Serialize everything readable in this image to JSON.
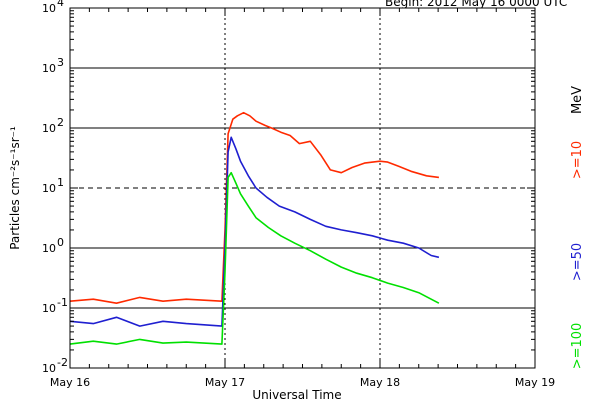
{
  "header": {
    "begin_text": "Begin: 2012 May 16 0000 UTC"
  },
  "chart_data": {
    "type": "line",
    "title": "",
    "xlabel": "Universal Time",
    "ylabel": "Particles cm⁻²s⁻¹sr⁻¹",
    "yscale": "log",
    "xlim_days": [
      0,
      3
    ],
    "ylim": [
      0.01,
      10000
    ],
    "x_tick_labels": [
      "May 16",
      "May 17",
      "May 18",
      "May 19"
    ],
    "x_ticks_days": [
      0,
      1,
      2,
      3
    ],
    "y_tick_labels": [
      {
        "base": "10",
        "exp": "-2",
        "value": 0.01
      },
      {
        "base": "10",
        "exp": "-1",
        "value": 0.1
      },
      {
        "base": "10",
        "exp": "0",
        "value": 1
      },
      {
        "base": "10",
        "exp": "1",
        "value": 10
      },
      {
        "base": "10",
        "exp": "2",
        "value": 100
      },
      {
        "base": "10",
        "exp": "3",
        "value": 1000
      },
      {
        "base": "10",
        "exp": "4",
        "value": 10000
      }
    ],
    "reference_lines": [
      {
        "value": 0.1,
        "style": "solid"
      },
      {
        "value": 1,
        "style": "solid"
      },
      {
        "value": 10,
        "style": "dashed"
      },
      {
        "value": 100,
        "style": "solid"
      },
      {
        "value": 1000,
        "style": "solid"
      }
    ],
    "legend_unit": "MeV",
    "series": [
      {
        "name": ">=10",
        "color": "#ff2a00",
        "x": [
          0.0,
          0.15,
          0.3,
          0.45,
          0.6,
          0.75,
          0.98,
          1.0,
          1.02,
          1.05,
          1.08,
          1.12,
          1.16,
          1.2,
          1.26,
          1.3,
          1.36,
          1.42,
          1.48,
          1.55,
          1.62,
          1.68,
          1.75,
          1.82,
          1.9,
          2.0,
          2.05,
          2.12,
          2.2,
          2.3,
          2.38
        ],
        "y": [
          0.13,
          0.14,
          0.12,
          0.15,
          0.13,
          0.14,
          0.13,
          2.0,
          80,
          140,
          160,
          180,
          160,
          130,
          110,
          100,
          85,
          75,
          55,
          60,
          35,
          20,
          18,
          22,
          26,
          28,
          27,
          23,
          19,
          16,
          15
        ]
      },
      {
        "name": ">=50",
        "color": "#1f1fd0",
        "x": [
          0.0,
          0.15,
          0.3,
          0.45,
          0.6,
          0.75,
          0.98,
          1.0,
          1.02,
          1.04,
          1.07,
          1.1,
          1.15,
          1.2,
          1.27,
          1.35,
          1.45,
          1.55,
          1.65,
          1.75,
          1.85,
          1.95,
          2.05,
          2.15,
          2.25,
          2.33,
          2.38
        ],
        "y": [
          0.06,
          0.055,
          0.07,
          0.05,
          0.06,
          0.055,
          0.05,
          1.0,
          40,
          70,
          45,
          28,
          16,
          10,
          7,
          5,
          4,
          3,
          2.3,
          2.0,
          1.8,
          1.6,
          1.35,
          1.2,
          1.0,
          0.75,
          0.7
        ]
      },
      {
        "name": ">=100",
        "color": "#00e000",
        "x": [
          0.0,
          0.15,
          0.3,
          0.45,
          0.6,
          0.75,
          0.98,
          1.0,
          1.02,
          1.04,
          1.07,
          1.1,
          1.15,
          1.2,
          1.28,
          1.36,
          1.45,
          1.55,
          1.65,
          1.75,
          1.85,
          1.95,
          2.05,
          2.15,
          2.25,
          2.33,
          2.38
        ],
        "y": [
          0.025,
          0.028,
          0.025,
          0.03,
          0.026,
          0.027,
          0.025,
          0.4,
          15,
          18,
          12,
          8,
          5,
          3.2,
          2.2,
          1.6,
          1.2,
          0.9,
          0.65,
          0.48,
          0.38,
          0.32,
          0.26,
          0.22,
          0.18,
          0.14,
          0.12
        ]
      }
    ]
  }
}
